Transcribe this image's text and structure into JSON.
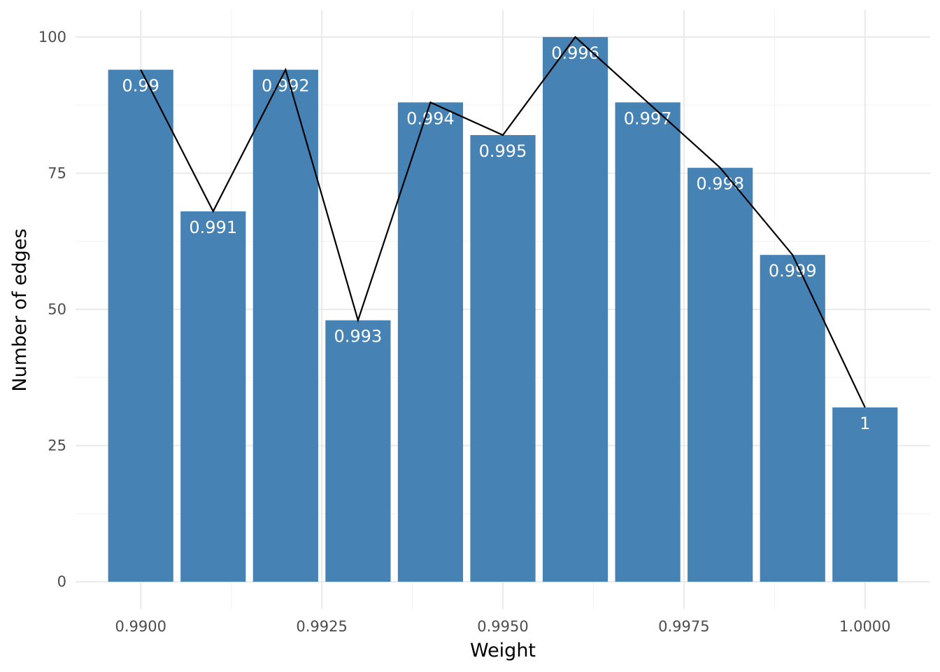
{
  "chart_data": {
    "type": "bar",
    "x": [
      0.99,
      0.991,
      0.992,
      0.993,
      0.994,
      0.995,
      0.996,
      0.997,
      0.998,
      0.999,
      1.0
    ],
    "values": [
      94,
      68,
      94,
      48,
      88,
      82,
      100,
      88,
      76,
      60,
      32
    ],
    "bar_labels": [
      "0.99",
      "0.991",
      "0.992",
      "0.993",
      "0.994",
      "0.995",
      "0.996",
      "0.997",
      "0.998",
      "0.999",
      "1"
    ],
    "overlay": "line",
    "xlabel": "Weight",
    "ylabel": "Number of edges",
    "xlim": [
      0.9891,
      1.0009
    ],
    "ylim": [
      -5,
      105
    ],
    "xticks": [
      0.99,
      0.9925,
      0.995,
      0.9975,
      1.0
    ],
    "xtick_labels": [
      "0.9900",
      "0.9925",
      "0.9950",
      "0.9975",
      "1.0000"
    ],
    "yticks": [
      0,
      25,
      50,
      75,
      100
    ],
    "ytick_labels": [
      "0",
      "25",
      "50",
      "75",
      "100"
    ],
    "grid": true,
    "bar_width": 0.0009,
    "colors": {
      "bar": "#4682b4",
      "line": "#000000",
      "grid_major": "#ebebeb",
      "grid_minor": "#f3f3f3",
      "label": "#ffffff"
    }
  }
}
